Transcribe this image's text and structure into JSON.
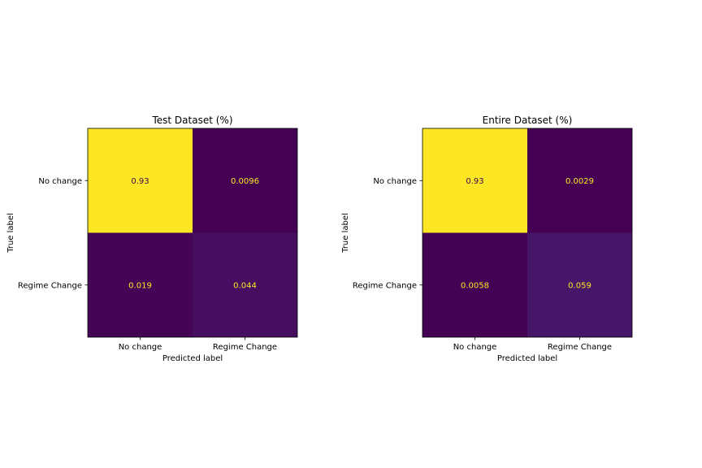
{
  "chart_data": [
    {
      "type": "heatmap",
      "title": "Test Dataset (%)",
      "xlabel": "Predicted label",
      "ylabel": "True label",
      "x_categories": [
        "No change",
        "Regime Change"
      ],
      "y_categories": [
        "No change",
        "Regime Change"
      ],
      "values": [
        [
          0.93,
          0.0096
        ],
        [
          0.019,
          0.044
        ]
      ],
      "value_labels": [
        [
          "0.93",
          "0.0096"
        ],
        [
          "0.019",
          "0.044"
        ]
      ],
      "colormap": "viridis",
      "colorbar": false
    },
    {
      "type": "heatmap",
      "title": "Entire Dataset (%)",
      "xlabel": "Predicted label",
      "ylabel": "True label",
      "x_categories": [
        "No change",
        "Regime Change"
      ],
      "y_categories": [
        "No change",
        "Regime Change"
      ],
      "values": [
        [
          0.93,
          0.0029
        ],
        [
          0.0058,
          0.059
        ]
      ],
      "value_labels": [
        [
          "0.93",
          "0.0029"
        ],
        [
          "0.0058",
          "0.059"
        ]
      ],
      "colormap": "viridis",
      "colorbar": false
    }
  ],
  "colors": {
    "viridis_low": "#440154",
    "viridis_high": "#fde725"
  }
}
